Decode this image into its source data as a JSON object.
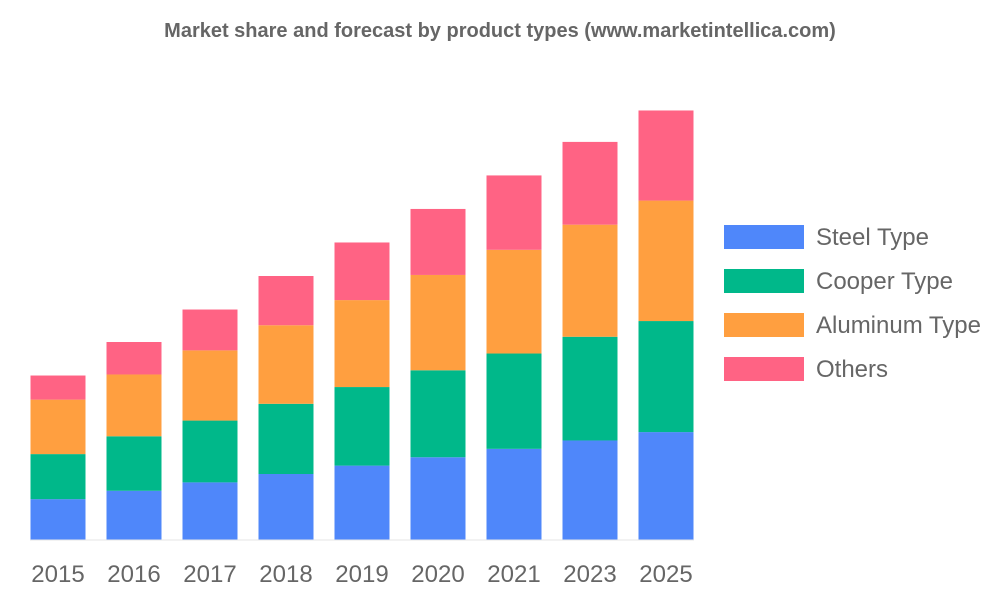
{
  "chart_data": {
    "type": "bar",
    "stacked": true,
    "title": "Market share and forecast by product types (www.marketintellica.com)",
    "xlabel": "",
    "ylabel": "",
    "grid": false,
    "legend_position": "right",
    "categories": [
      "2015",
      "2016",
      "2017",
      "2018",
      "2019",
      "2020",
      "2021",
      "2023",
      "2025"
    ],
    "series": [
      {
        "name": "Steel Type",
        "color": "#4f87fa",
        "values": [
          39,
          47,
          55,
          63,
          71,
          79,
          87,
          95,
          103
        ]
      },
      {
        "name": "Cooper Type",
        "color": "#00b88a",
        "values": [
          43,
          52,
          59,
          67,
          75,
          83,
          91,
          99,
          106
        ]
      },
      {
        "name": "Aluminum Type",
        "color": "#ff9f40",
        "values": [
          52,
          59,
          67,
          75,
          83,
          91,
          99,
          107,
          115
        ]
      },
      {
        "name": "Others",
        "color": "#ff6384",
        "values": [
          23,
          31,
          39,
          47,
          55,
          63,
          71,
          79,
          86
        ]
      }
    ],
    "ylim": [
      0,
      420
    ]
  }
}
